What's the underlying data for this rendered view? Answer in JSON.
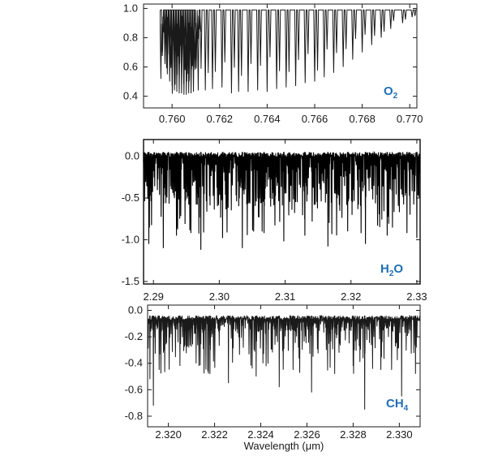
{
  "figure": {
    "xlabel": "Wavelength (μm)"
  },
  "chart_data": [
    {
      "type": "line",
      "name": "o2-panel",
      "label_main": "O",
      "label_sub": "2",
      "xlim": [
        0.7588,
        0.7703
      ],
      "ylim": [
        0.32,
        1.03
      ],
      "x_ticks": [
        0.76,
        0.762,
        0.764,
        0.766,
        0.768,
        0.77
      ],
      "x_tick_labels": [
        "0.760",
        "0.762",
        "0.764",
        "0.766",
        "0.768",
        "0.770"
      ],
      "y_ticks": [
        1.0,
        0.8,
        0.6,
        0.4
      ],
      "y_tick_labels": [
        "1.0",
        "0.8",
        "0.6",
        "0.4"
      ],
      "continuum": 0.99,
      "line_color": "#1a1a1a",
      "x_range_shown": [
        0.7595,
        0.7702
      ],
      "dense_region": [
        0.7595,
        0.7612
      ],
      "absorption_lines": [
        {
          "x": 0.7596,
          "y": 0.7
        },
        {
          "x": 0.7597,
          "y": 0.62
        },
        {
          "x": 0.7598,
          "y": 0.55
        },
        {
          "x": 0.7599,
          "y": 0.5
        },
        {
          "x": 0.76,
          "y": 0.47
        },
        {
          "x": 0.7601,
          "y": 0.44
        },
        {
          "x": 0.7602,
          "y": 0.43
        },
        {
          "x": 0.7603,
          "y": 0.42
        },
        {
          "x": 0.7604,
          "y": 0.42
        },
        {
          "x": 0.7605,
          "y": 0.41
        },
        {
          "x": 0.7606,
          "y": 0.41
        },
        {
          "x": 0.7607,
          "y": 0.42
        },
        {
          "x": 0.7608,
          "y": 0.42
        },
        {
          "x": 0.7609,
          "y": 0.43
        },
        {
          "x": 0.7611,
          "y": 0.44
        },
        {
          "x": 0.7614,
          "y": 0.44
        },
        {
          "x": 0.7617,
          "y": 0.45
        },
        {
          "x": 0.7621,
          "y": 0.46
        },
        {
          "x": 0.7625,
          "y": 0.42
        },
        {
          "x": 0.7628,
          "y": 0.43
        },
        {
          "x": 0.7632,
          "y": 0.43
        },
        {
          "x": 0.7636,
          "y": 0.44
        },
        {
          "x": 0.764,
          "y": 0.43
        },
        {
          "x": 0.7644,
          "y": 0.45
        },
        {
          "x": 0.7648,
          "y": 0.46
        },
        {
          "x": 0.7652,
          "y": 0.47
        },
        {
          "x": 0.7656,
          "y": 0.49
        },
        {
          "x": 0.766,
          "y": 0.5
        },
        {
          "x": 0.7664,
          "y": 0.53
        },
        {
          "x": 0.7668,
          "y": 0.56
        },
        {
          "x": 0.7672,
          "y": 0.6
        },
        {
          "x": 0.7676,
          "y": 0.65
        },
        {
          "x": 0.768,
          "y": 0.7
        },
        {
          "x": 0.7684,
          "y": 0.75
        },
        {
          "x": 0.7688,
          "y": 0.8
        },
        {
          "x": 0.7692,
          "y": 0.86
        },
        {
          "x": 0.7697,
          "y": 0.9
        },
        {
          "x": 0.7701,
          "y": 0.94
        }
      ]
    },
    {
      "type": "line",
      "name": "h2o-panel",
      "label_main": "H",
      "label_sub": "2",
      "label_tail": "O",
      "xlim": [
        2.2885,
        2.3305
      ],
      "ylim": [
        -1.53,
        0.2
      ],
      "x_ticks": [
        2.29,
        2.3,
        2.31,
        2.32,
        2.33
      ],
      "x_tick_labels": [
        "2.29",
        "2.30",
        "2.31",
        "2.32",
        "2.33"
      ],
      "y_ticks": [
        0.0,
        -0.5,
        -1.0,
        -1.5
      ],
      "y_tick_labels": [
        "0.0",
        "-0.5",
        "-1.0",
        "-1.5"
      ],
      "continuum": 0.05,
      "line_color": "#000000",
      "x_range_shown": [
        2.2885,
        2.3305
      ],
      "typical_depth": -0.45,
      "max_depth": -1.15,
      "deepest_lines": [
        {
          "x": 2.2893,
          "y": -1.05
        },
        {
          "x": 2.2915,
          "y": -1.1
        },
        {
          "x": 2.2935,
          "y": -0.95
        },
        {
          "x": 2.2972,
          "y": -1.12
        },
        {
          "x": 2.3005,
          "y": -0.98
        },
        {
          "x": 2.3035,
          "y": -1.1
        },
        {
          "x": 2.3068,
          "y": -0.92
        },
        {
          "x": 2.3098,
          "y": -1.02
        },
        {
          "x": 2.313,
          "y": -0.95
        },
        {
          "x": 2.3165,
          "y": -1.08
        },
        {
          "x": 2.3195,
          "y": -0.9
        },
        {
          "x": 2.3222,
          "y": -1.05
        },
        {
          "x": 2.3255,
          "y": -0.95
        },
        {
          "x": 2.3285,
          "y": -0.92
        },
        {
          "x": 2.33,
          "y": -0.98
        }
      ]
    },
    {
      "type": "line",
      "name": "ch4-panel",
      "label_main": "CH",
      "label_sub": "4",
      "xlim": [
        2.3191,
        2.3309
      ],
      "ylim": [
        -0.88,
        0.04
      ],
      "x_ticks": [
        2.32,
        2.322,
        2.324,
        2.326,
        2.328,
        2.33
      ],
      "x_tick_labels": [
        "2.320",
        "2.322",
        "2.324",
        "2.326",
        "2.328",
        "2.330"
      ],
      "y_ticks": [
        0.0,
        -0.2,
        -0.4,
        -0.6,
        -0.8
      ],
      "y_tick_labels": [
        "0.0",
        "-0.2",
        "-0.4",
        "-0.6",
        "-0.8"
      ],
      "continuum": -0.04,
      "line_color": "#1a1a1a",
      "x_range_shown": [
        2.3191,
        2.3309
      ],
      "typical_depth": -0.2,
      "deepest_lines": [
        {
          "x": 2.3192,
          "y": -0.52
        },
        {
          "x": 2.31935,
          "y": -0.72
        },
        {
          "x": 2.3196,
          "y": -0.45
        },
        {
          "x": 2.3205,
          "y": -0.42
        },
        {
          "x": 2.3212,
          "y": -0.4
        },
        {
          "x": 2.3218,
          "y": -0.48
        },
        {
          "x": 2.3226,
          "y": -0.55
        },
        {
          "x": 2.3238,
          "y": -0.5
        },
        {
          "x": 2.3248,
          "y": -0.58
        },
        {
          "x": 2.3254,
          "y": -0.45
        },
        {
          "x": 2.3262,
          "y": -0.62
        },
        {
          "x": 2.3272,
          "y": -0.48
        },
        {
          "x": 2.328,
          "y": -0.42
        },
        {
          "x": 2.3285,
          "y": -0.75
        },
        {
          "x": 2.3292,
          "y": -0.45
        },
        {
          "x": 2.3301,
          "y": -0.65
        },
        {
          "x": 2.3307,
          "y": -0.48
        }
      ]
    }
  ]
}
